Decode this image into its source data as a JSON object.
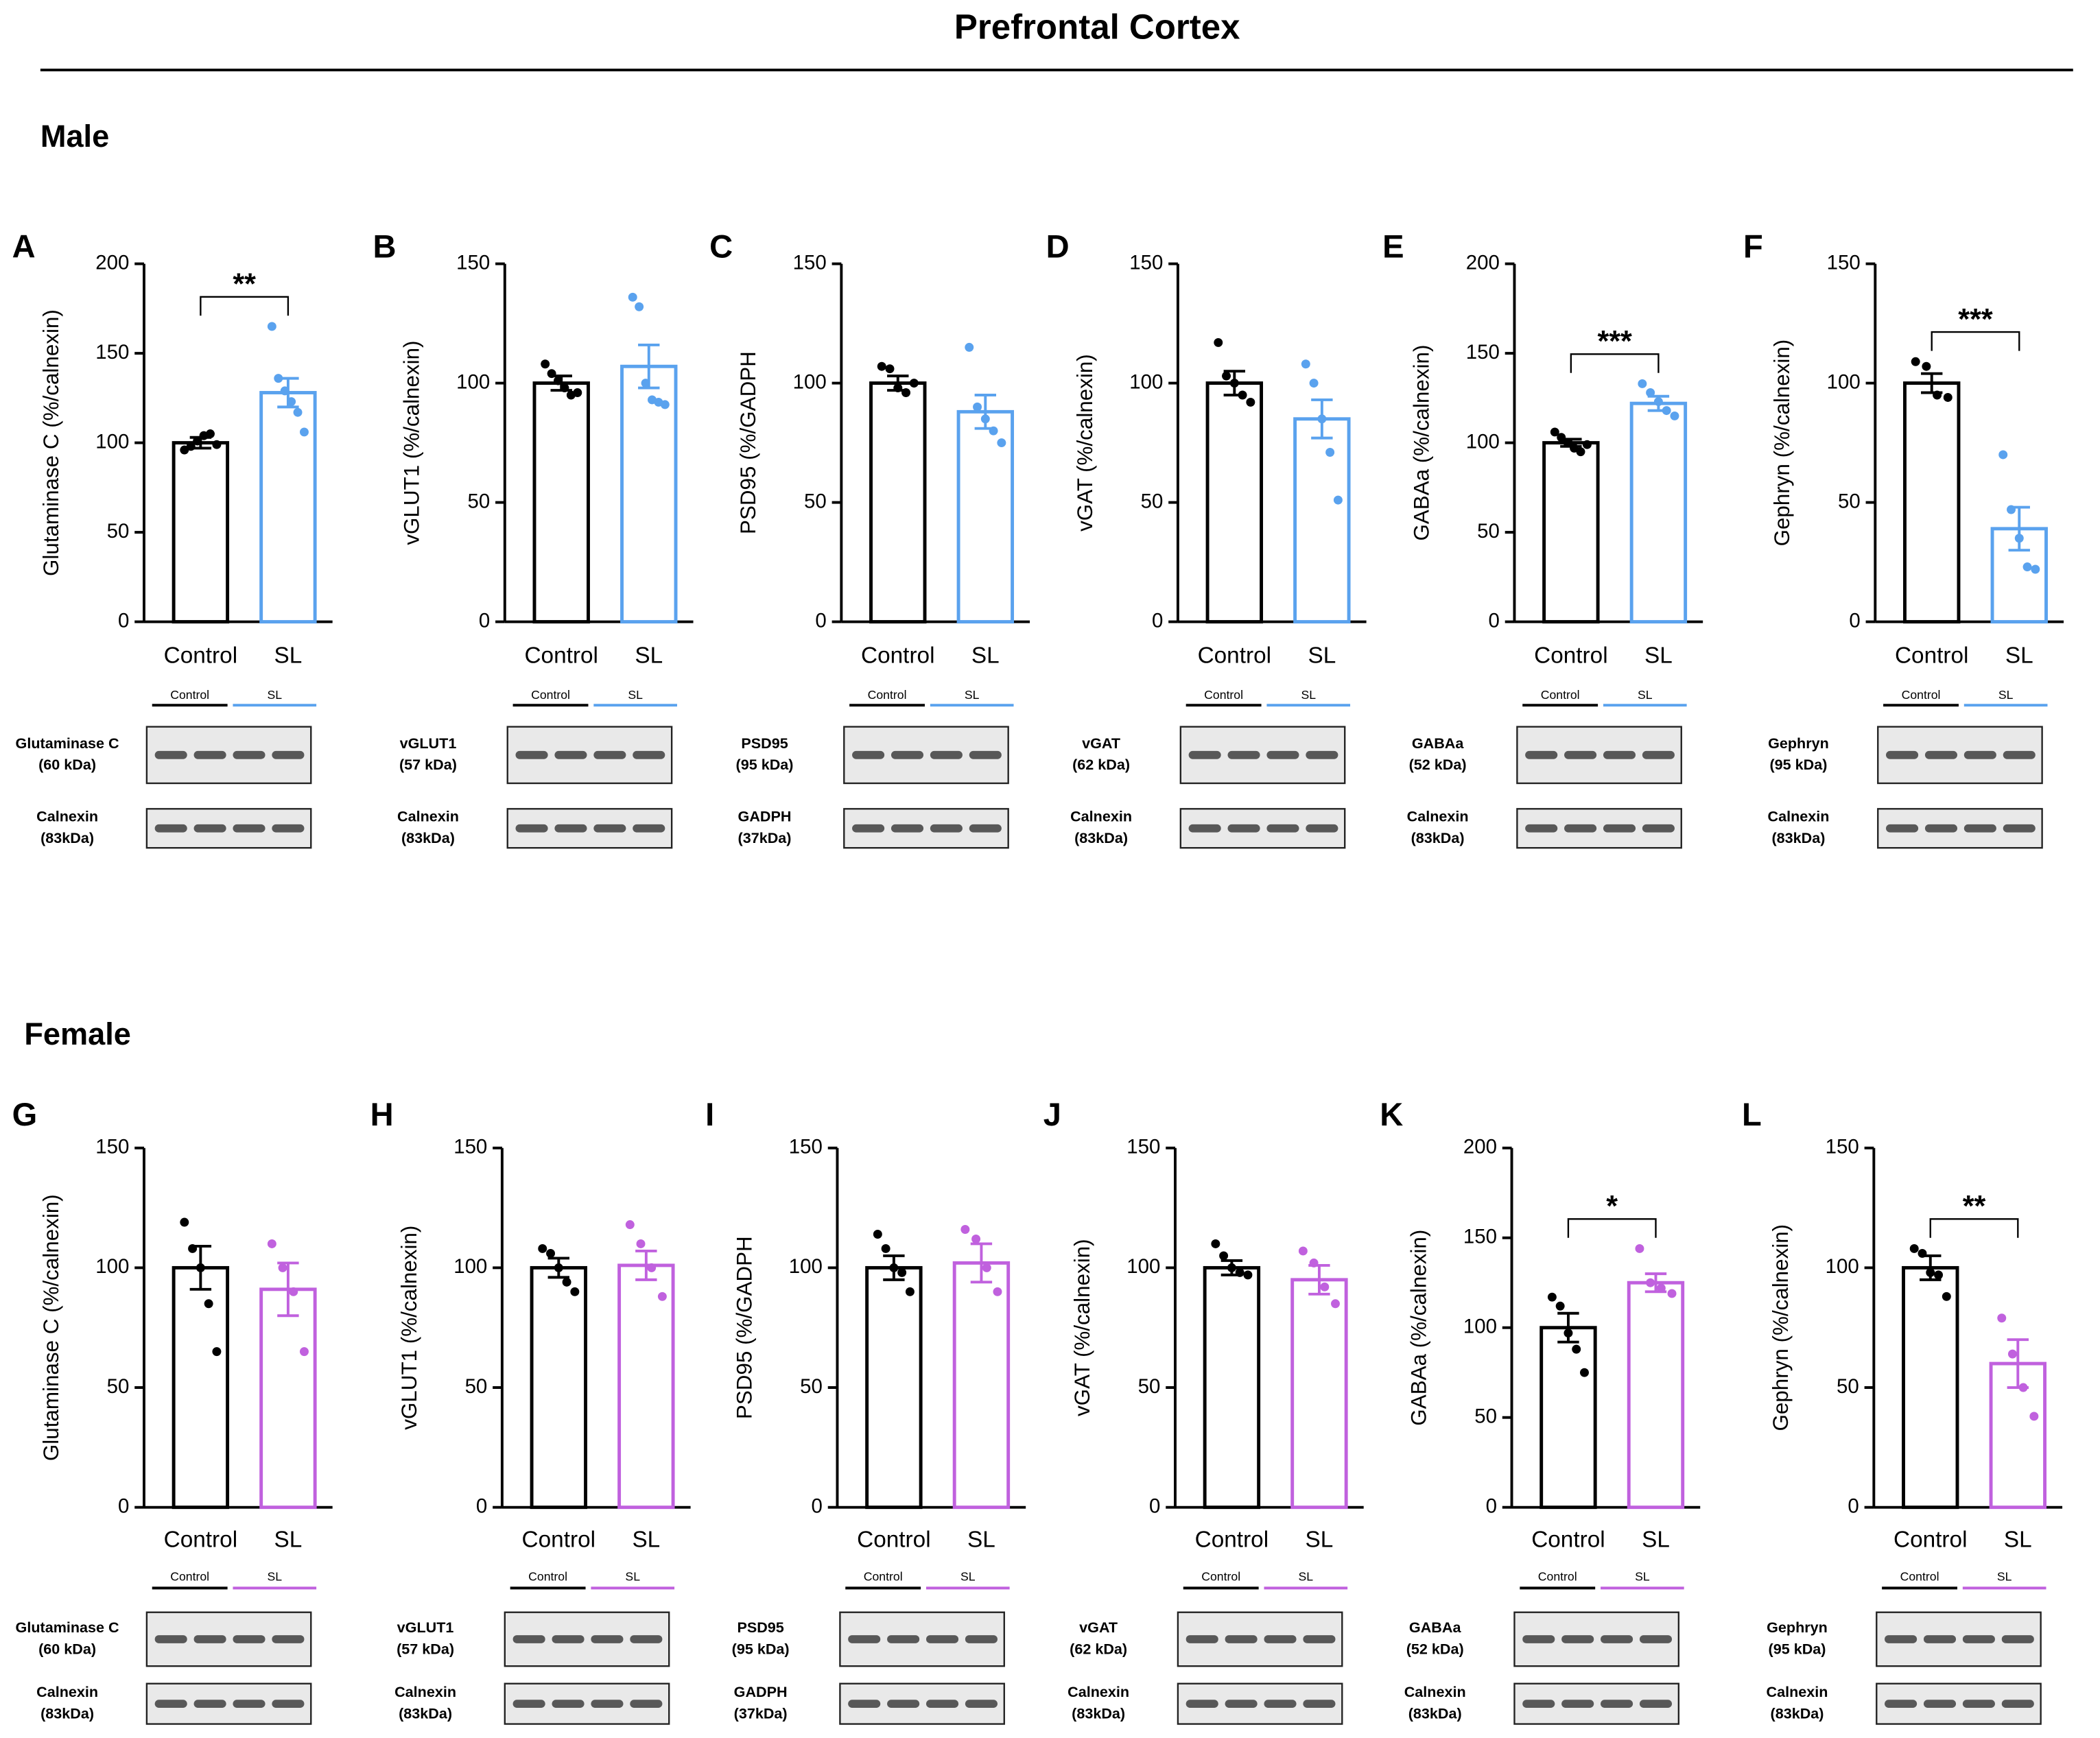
{
  "title": "Prefrontal Cortex",
  "sections": [
    "Male",
    "Female"
  ],
  "chart_data": [
    {
      "type": "bar",
      "panel": "A",
      "ylabel": "Glutaminase C (%/calnexin)",
      "categories": [
        "Control",
        "SL"
      ],
      "values": [
        100,
        128
      ],
      "errors": [
        3,
        8
      ],
      "points": [
        [
          96,
          98,
          101,
          104,
          105,
          99
        ],
        [
          165,
          136,
          129,
          123,
          117,
          106
        ]
      ],
      "colors": [
        "#000000",
        "#5aa2ee"
      ],
      "ylim": [
        0,
        200
      ],
      "yticks": [
        0,
        50,
        100,
        150,
        200
      ],
      "significance": "**",
      "blot": {
        "groups": [
          "Control",
          "SL"
        ],
        "bands": [
          {
            "name": "Glutaminase C",
            "size": "(60 kDa)"
          },
          {
            "name": "Calnexin",
            "size": "(83kDa)"
          }
        ]
      }
    },
    {
      "type": "bar",
      "panel": "B",
      "ylabel": "vGLUT1 (%/calnexin)",
      "categories": [
        "Control",
        "SL"
      ],
      "values": [
        100,
        107
      ],
      "errors": [
        3,
        9
      ],
      "points": [
        [
          108,
          104,
          101,
          98,
          95,
          96
        ],
        [
          136,
          132,
          100,
          93,
          92,
          91
        ]
      ],
      "colors": [
        "#000000",
        "#5aa2ee"
      ],
      "ylim": [
        0,
        150
      ],
      "yticks": [
        0,
        50,
        100,
        150
      ],
      "blot": {
        "groups": [
          "Control",
          "SL"
        ],
        "bands": [
          {
            "name": "vGLUT1",
            "size": "(57 kDa)"
          },
          {
            "name": "Calnexin",
            "size": "(83kDa)"
          }
        ]
      }
    },
    {
      "type": "bar",
      "panel": "C",
      "ylabel": "PSD95 (%/GADPH",
      "categories": [
        "Control",
        "SL"
      ],
      "values": [
        100,
        88
      ],
      "errors": [
        3,
        7
      ],
      "points": [
        [
          107,
          106,
          98,
          96,
          100
        ],
        [
          115,
          90,
          85,
          80,
          75
        ]
      ],
      "colors": [
        "#000000",
        "#5aa2ee"
      ],
      "ylim": [
        0,
        150
      ],
      "yticks": [
        0,
        50,
        100,
        150
      ],
      "blot": {
        "groups": [
          "Control",
          "SL"
        ],
        "bands": [
          {
            "name": "PSD95",
            "size": "(95 kDa)"
          },
          {
            "name": "GADPH",
            "size": "(37kDa)"
          }
        ]
      }
    },
    {
      "type": "bar",
      "panel": "D",
      "ylabel": "vGAT (%/calnexin)",
      "categories": [
        "Control",
        "SL"
      ],
      "values": [
        100,
        85
      ],
      "errors": [
        5,
        8
      ],
      "points": [
        [
          117,
          103,
          100,
          95,
          92
        ],
        [
          108,
          100,
          85,
          71,
          51
        ]
      ],
      "colors": [
        "#000000",
        "#5aa2ee"
      ],
      "ylim": [
        0,
        150
      ],
      "yticks": [
        0,
        50,
        100,
        150
      ],
      "blot": {
        "groups": [
          "Control",
          "SL"
        ],
        "bands": [
          {
            "name": "vGAT",
            "size": "(62 kDa)"
          },
          {
            "name": "Calnexin",
            "size": "(83kDa)"
          }
        ]
      }
    },
    {
      "type": "bar",
      "panel": "E",
      "ylabel": "GABAa (%/calnexin)",
      "categories": [
        "Control",
        "SL"
      ],
      "values": [
        100,
        122
      ],
      "errors": [
        2,
        4
      ],
      "points": [
        [
          106,
          103,
          100,
          97,
          95,
          99
        ],
        [
          133,
          128,
          123,
          118,
          115
        ]
      ],
      "colors": [
        "#000000",
        "#5aa2ee"
      ],
      "ylim": [
        0,
        200
      ],
      "yticks": [
        0,
        50,
        100,
        150,
        200
      ],
      "significance": "***",
      "blot": {
        "groups": [
          "Control",
          "SL"
        ],
        "bands": [
          {
            "name": "GABAa",
            "size": "(52 kDa)"
          },
          {
            "name": "Calnexin",
            "size": "(83kDa)"
          }
        ]
      }
    },
    {
      "type": "bar",
      "panel": "F",
      "ylabel": "Gephryn (%/calnexin)",
      "categories": [
        "Control",
        "SL"
      ],
      "values": [
        100,
        39
      ],
      "errors": [
        4,
        9
      ],
      "points": [
        [
          109,
          107,
          95,
          94
        ],
        [
          70,
          47,
          35,
          23,
          22
        ]
      ],
      "colors": [
        "#000000",
        "#5aa2ee"
      ],
      "ylim": [
        0,
        150
      ],
      "yticks": [
        0,
        50,
        100,
        150
      ],
      "significance": "***",
      "blot": {
        "groups": [
          "Control",
          "SL"
        ],
        "bands": [
          {
            "name": "Gephryn",
            "size": "(95 kDa)"
          },
          {
            "name": "Calnexin",
            "size": "(83kDa)"
          }
        ]
      }
    },
    {
      "type": "bar",
      "panel": "G",
      "ylabel": "Glutaminase C (%/calnexin)",
      "categories": [
        "Control",
        "SL"
      ],
      "values": [
        100,
        91
      ],
      "errors": [
        9,
        11
      ],
      "points": [
        [
          119,
          108,
          100,
          85,
          65
        ],
        [
          110,
          100,
          90,
          65
        ]
      ],
      "colors": [
        "#000000",
        "#c061de"
      ],
      "ylim": [
        0,
        150
      ],
      "yticks": [
        0,
        50,
        100,
        150
      ],
      "blot": {
        "groups": [
          "Control",
          "SL"
        ],
        "bands": [
          {
            "name": "Glutaminase C",
            "size": "(60 kDa)"
          },
          {
            "name": "Calnexin",
            "size": "(83kDa)"
          }
        ]
      }
    },
    {
      "type": "bar",
      "panel": "H",
      "ylabel": "vGLUT1 (%/calnexin)",
      "categories": [
        "Control",
        "SL"
      ],
      "values": [
        100,
        101
      ],
      "errors": [
        4,
        6
      ],
      "points": [
        [
          108,
          106,
          100,
          94,
          90
        ],
        [
          118,
          110,
          100,
          88
        ]
      ],
      "colors": [
        "#000000",
        "#c061de"
      ],
      "ylim": [
        0,
        150
      ],
      "yticks": [
        0,
        50,
        100,
        150
      ],
      "blot": {
        "groups": [
          "Control",
          "SL"
        ],
        "bands": [
          {
            "name": "vGLUT1",
            "size": "(57 kDa)"
          },
          {
            "name": "Calnexin",
            "size": "(83kDa)"
          }
        ]
      }
    },
    {
      "type": "bar",
      "panel": "I",
      "ylabel": "PSD95 (%/GADPH",
      "categories": [
        "Control",
        "SL"
      ],
      "values": [
        100,
        102
      ],
      "errors": [
        5,
        8
      ],
      "points": [
        [
          114,
          108,
          100,
          98,
          90
        ],
        [
          116,
          112,
          100,
          90
        ]
      ],
      "colors": [
        "#000000",
        "#c061de"
      ],
      "ylim": [
        0,
        150
      ],
      "yticks": [
        0,
        50,
        100,
        150
      ],
      "blot": {
        "groups": [
          "Control",
          "SL"
        ],
        "bands": [
          {
            "name": "PSD95",
            "size": "(95 kDa)"
          },
          {
            "name": "GADPH",
            "size": "(37kDa)"
          }
        ]
      }
    },
    {
      "type": "bar",
      "panel": "J",
      "ylabel": "vGAT (%/calnexin)",
      "categories": [
        "Control",
        "SL"
      ],
      "values": [
        100,
        95
      ],
      "errors": [
        3,
        6
      ],
      "points": [
        [
          110,
          105,
          100,
          98,
          97
        ],
        [
          107,
          102,
          92,
          85
        ]
      ],
      "colors": [
        "#000000",
        "#c061de"
      ],
      "ylim": [
        0,
        150
      ],
      "yticks": [
        0,
        50,
        100,
        150
      ],
      "blot": {
        "groups": [
          "Control",
          "SL"
        ],
        "bands": [
          {
            "name": "vGAT",
            "size": "(62 kDa)"
          },
          {
            "name": "Calnexin",
            "size": "(83kDa)"
          }
        ]
      }
    },
    {
      "type": "bar",
      "panel": "K",
      "ylabel": "GABAa (%/calnexin)",
      "categories": [
        "Control",
        "SL"
      ],
      "values": [
        100,
        125
      ],
      "errors": [
        8,
        5
      ],
      "points": [
        [
          117,
          112,
          97,
          88,
          75
        ],
        [
          144,
          125,
          122,
          119
        ]
      ],
      "colors": [
        "#000000",
        "#c061de"
      ],
      "ylim": [
        0,
        200
      ],
      "yticks": [
        0,
        50,
        100,
        150,
        200
      ],
      "significance": "*",
      "blot": {
        "groups": [
          "Control",
          "SL"
        ],
        "bands": [
          {
            "name": "GABAa",
            "size": "(52 kDa)"
          },
          {
            "name": "Calnexin",
            "size": "(83kDa)"
          }
        ]
      }
    },
    {
      "type": "bar",
      "panel": "L",
      "ylabel": "Gephryn (%/calnexin)",
      "categories": [
        "Control",
        "SL"
      ],
      "values": [
        100,
        60
      ],
      "errors": [
        5,
        10
      ],
      "points": [
        [
          108,
          106,
          98,
          97,
          88
        ],
        [
          79,
          64,
          50,
          38
        ]
      ],
      "colors": [
        "#000000",
        "#c061de"
      ],
      "ylim": [
        0,
        150
      ],
      "yticks": [
        0,
        50,
        100,
        150
      ],
      "significance": "**",
      "blot": {
        "groups": [
          "Control",
          "SL"
        ],
        "bands": [
          {
            "name": "Gephryn",
            "size": "(95 kDa)"
          },
          {
            "name": "Calnexin",
            "size": "(83kDa)"
          }
        ]
      }
    }
  ]
}
